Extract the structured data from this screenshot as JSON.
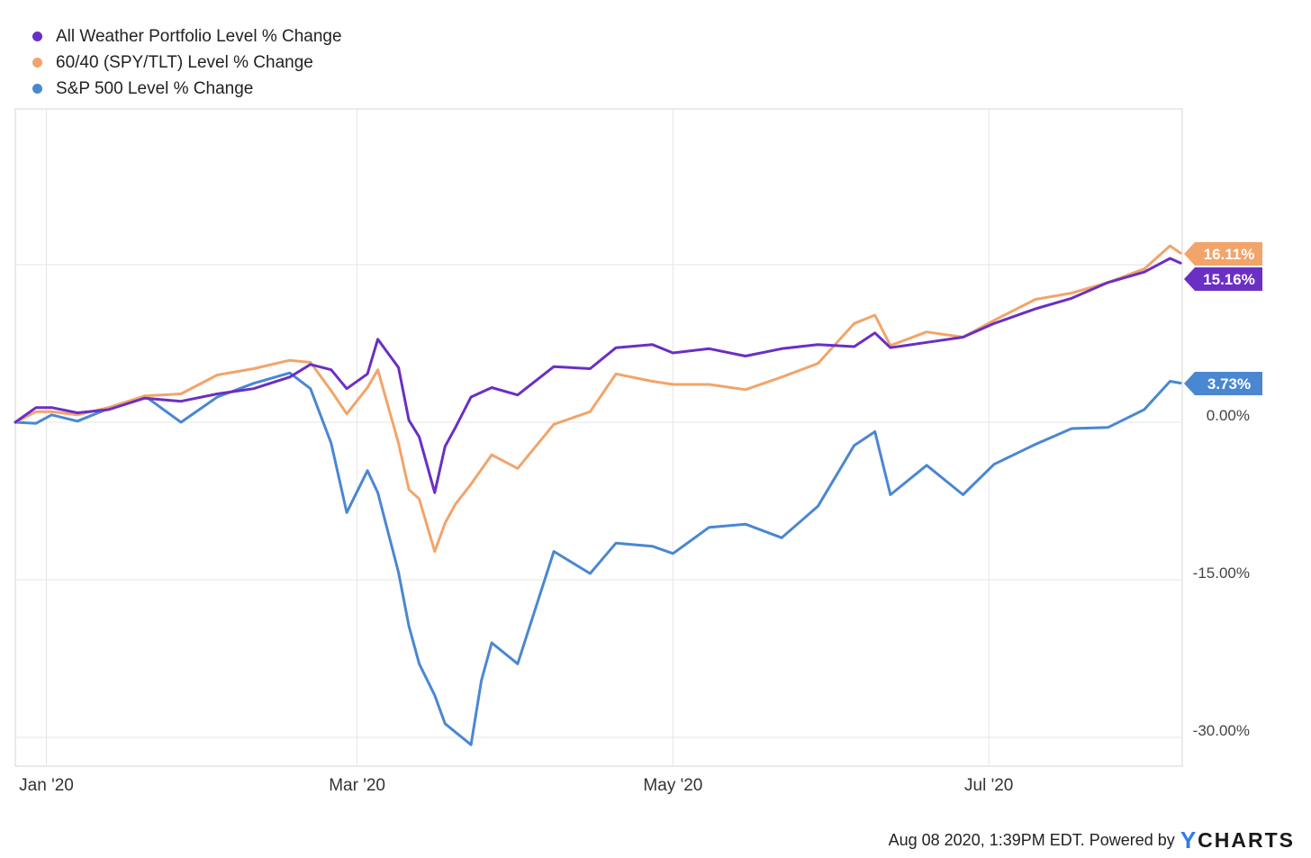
{
  "chart_data": {
    "type": "line",
    "title": "",
    "xlabel": "",
    "ylabel": "",
    "x_range": [
      "2019-12-26",
      "2020-08-07"
    ],
    "x_ticks": [
      {
        "label": "Jan '20",
        "date": "2020-01-01"
      },
      {
        "label": "Mar '20",
        "date": "2020-03-01"
      },
      {
        "label": "May '20",
        "date": "2020-05-01"
      },
      {
        "label": "Jul '20",
        "date": "2020-07-01"
      }
    ],
    "ylim": [
      -31,
      30
    ],
    "y_ticks": [
      {
        "label": "0.00%",
        "value": 0
      },
      {
        "label": "-15.00%",
        "value": -15
      },
      {
        "label": "-30.00%",
        "value": -30
      }
    ],
    "y_gridlines": [
      15,
      0,
      -15,
      -30
    ],
    "grid": true,
    "legend_position": "top-left",
    "series": [
      {
        "name": "All Weather Portfolio Level % Change",
        "color": "#6a2fc4",
        "end_label": "15.16%",
        "points": [
          [
            "2019-12-26",
            0
          ],
          [
            "2019-12-30",
            1.4
          ],
          [
            "2020-01-02",
            1.4
          ],
          [
            "2020-01-07",
            0.9
          ],
          [
            "2020-01-13",
            1.2
          ],
          [
            "2020-01-20",
            2.3
          ],
          [
            "2020-01-27",
            2.0
          ],
          [
            "2020-02-03",
            2.7
          ],
          [
            "2020-02-10",
            3.2
          ],
          [
            "2020-02-17",
            4.3
          ],
          [
            "2020-02-21",
            5.5
          ],
          [
            "2020-02-25",
            5.0
          ],
          [
            "2020-02-28",
            3.2
          ],
          [
            "2020-03-03",
            4.6
          ],
          [
            "2020-03-05",
            7.9
          ],
          [
            "2020-03-09",
            5.2
          ],
          [
            "2020-03-11",
            0.2
          ],
          [
            "2020-03-13",
            -1.4
          ],
          [
            "2020-03-16",
            -6.7
          ],
          [
            "2020-03-18",
            -2.3
          ],
          [
            "2020-03-20",
            -0.5
          ],
          [
            "2020-03-23",
            2.4
          ],
          [
            "2020-03-27",
            3.3
          ],
          [
            "2020-04-01",
            2.6
          ],
          [
            "2020-04-08",
            5.3
          ],
          [
            "2020-04-15",
            5.1
          ],
          [
            "2020-04-20",
            7.1
          ],
          [
            "2020-04-27",
            7.4
          ],
          [
            "2020-05-01",
            6.6
          ],
          [
            "2020-05-08",
            7.0
          ],
          [
            "2020-05-15",
            6.3
          ],
          [
            "2020-05-22",
            7.0
          ],
          [
            "2020-05-29",
            7.4
          ],
          [
            "2020-06-05",
            7.2
          ],
          [
            "2020-06-09",
            8.5
          ],
          [
            "2020-06-12",
            7.1
          ],
          [
            "2020-06-19",
            7.6
          ],
          [
            "2020-06-26",
            8.1
          ],
          [
            "2020-07-02",
            9.4
          ],
          [
            "2020-07-10",
            10.8
          ],
          [
            "2020-07-17",
            11.8
          ],
          [
            "2020-07-24",
            13.3
          ],
          [
            "2020-07-31",
            14.3
          ],
          [
            "2020-08-05",
            15.6
          ],
          [
            "2020-08-07",
            15.16
          ]
        ]
      },
      {
        "name": "60/40 (SPY/TLT) Level % Change",
        "color": "#f2a46a",
        "end_label": "16.11%",
        "points": [
          [
            "2019-12-26",
            0
          ],
          [
            "2019-12-30",
            1.0
          ],
          [
            "2020-01-02",
            1.0
          ],
          [
            "2020-01-07",
            0.7
          ],
          [
            "2020-01-13",
            1.4
          ],
          [
            "2020-01-20",
            2.5
          ],
          [
            "2020-01-27",
            2.7
          ],
          [
            "2020-02-03",
            4.5
          ],
          [
            "2020-02-10",
            5.1
          ],
          [
            "2020-02-17",
            5.9
          ],
          [
            "2020-02-21",
            5.7
          ],
          [
            "2020-02-25",
            3.0
          ],
          [
            "2020-02-28",
            0.8
          ],
          [
            "2020-03-03",
            3.3
          ],
          [
            "2020-03-05",
            5.0
          ],
          [
            "2020-03-09",
            -2.0
          ],
          [
            "2020-03-11",
            -6.4
          ],
          [
            "2020-03-13",
            -7.3
          ],
          [
            "2020-03-16",
            -12.3
          ],
          [
            "2020-03-18",
            -9.6
          ],
          [
            "2020-03-20",
            -7.8
          ],
          [
            "2020-03-23",
            -5.9
          ],
          [
            "2020-03-27",
            -3.1
          ],
          [
            "2020-04-01",
            -4.4
          ],
          [
            "2020-04-08",
            -0.2
          ],
          [
            "2020-04-15",
            1.0
          ],
          [
            "2020-04-20",
            4.6
          ],
          [
            "2020-04-27",
            3.9
          ],
          [
            "2020-05-01",
            3.6
          ],
          [
            "2020-05-08",
            3.6
          ],
          [
            "2020-05-15",
            3.1
          ],
          [
            "2020-05-22",
            4.3
          ],
          [
            "2020-05-29",
            5.6
          ],
          [
            "2020-06-05",
            9.4
          ],
          [
            "2020-06-09",
            10.2
          ],
          [
            "2020-06-12",
            7.3
          ],
          [
            "2020-06-19",
            8.6
          ],
          [
            "2020-06-26",
            8.1
          ],
          [
            "2020-07-02",
            9.7
          ],
          [
            "2020-07-10",
            11.7
          ],
          [
            "2020-07-17",
            12.3
          ],
          [
            "2020-07-24",
            13.3
          ],
          [
            "2020-07-31",
            14.6
          ],
          [
            "2020-08-05",
            16.8
          ],
          [
            "2020-08-07",
            16.11
          ]
        ]
      },
      {
        "name": "S&P 500 Level % Change",
        "color": "#4a87d1",
        "end_label": "3.73%",
        "points": [
          [
            "2019-12-26",
            0
          ],
          [
            "2019-12-30",
            -0.1
          ],
          [
            "2020-01-02",
            0.7
          ],
          [
            "2020-01-07",
            0.1
          ],
          [
            "2020-01-13",
            1.3
          ],
          [
            "2020-01-20",
            2.5
          ],
          [
            "2020-01-27",
            0.0
          ],
          [
            "2020-02-03",
            2.4
          ],
          [
            "2020-02-10",
            3.7
          ],
          [
            "2020-02-17",
            4.7
          ],
          [
            "2020-02-21",
            3.2
          ],
          [
            "2020-02-25",
            -2.0
          ],
          [
            "2020-02-28",
            -8.6
          ],
          [
            "2020-03-03",
            -4.6
          ],
          [
            "2020-03-05",
            -6.7
          ],
          [
            "2020-03-09",
            -14.3
          ],
          [
            "2020-03-11",
            -19.4
          ],
          [
            "2020-03-13",
            -23.0
          ],
          [
            "2020-03-16",
            -26.0
          ],
          [
            "2020-03-18",
            -28.7
          ],
          [
            "2020-03-20",
            -29.5
          ],
          [
            "2020-03-23",
            -30.7
          ],
          [
            "2020-03-25",
            -24.6
          ],
          [
            "2020-03-27",
            -21.0
          ],
          [
            "2020-04-01",
            -23.0
          ],
          [
            "2020-04-08",
            -12.3
          ],
          [
            "2020-04-15",
            -14.4
          ],
          [
            "2020-04-20",
            -11.5
          ],
          [
            "2020-04-27",
            -11.8
          ],
          [
            "2020-05-01",
            -12.5
          ],
          [
            "2020-05-08",
            -10.0
          ],
          [
            "2020-05-15",
            -9.7
          ],
          [
            "2020-05-22",
            -11.0
          ],
          [
            "2020-05-29",
            -8.0
          ],
          [
            "2020-06-05",
            -2.2
          ],
          [
            "2020-06-09",
            -0.9
          ],
          [
            "2020-06-12",
            -6.9
          ],
          [
            "2020-06-19",
            -4.1
          ],
          [
            "2020-06-26",
            -6.9
          ],
          [
            "2020-07-02",
            -4.0
          ],
          [
            "2020-07-10",
            -2.1
          ],
          [
            "2020-07-17",
            -0.6
          ],
          [
            "2020-07-24",
            -0.5
          ],
          [
            "2020-07-31",
            1.2
          ],
          [
            "2020-08-05",
            3.9
          ],
          [
            "2020-08-07",
            3.73
          ]
        ]
      }
    ]
  },
  "footer": {
    "timestamp": "Aug 08 2020, 1:39PM EDT. Powered by",
    "brand_mark": "Y",
    "brand_name": "CHARTS"
  }
}
